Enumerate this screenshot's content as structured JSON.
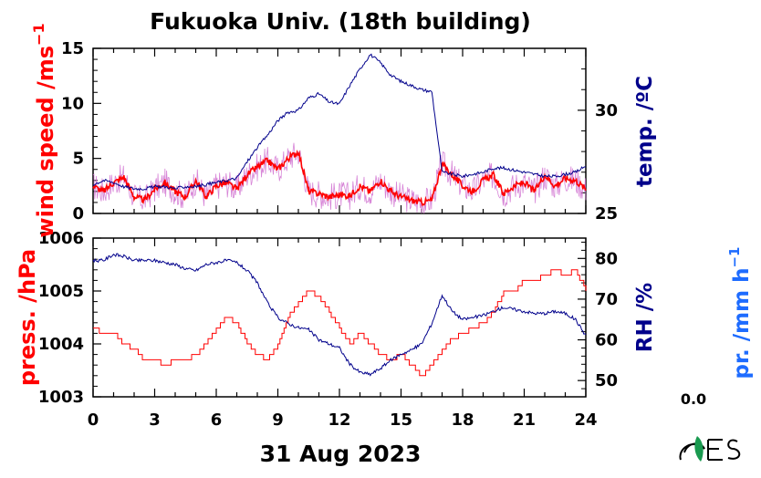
{
  "title": "Fukuoka Univ. (18th building)",
  "date_label": "31 Aug 2023",
  "precip_value": "0.0",
  "colors": {
    "wind": "#ff0000",
    "wind_raw": "#d070d0",
    "temp": "#00008b",
    "pressure": "#ff0000",
    "rh": "#00008b",
    "precip": "#1e6cff"
  },
  "chart_data": [
    {
      "type": "line",
      "panel": "upper",
      "xlabel": "",
      "xlim": [
        0,
        24
      ],
      "y_left": {
        "label_main": "wind speed /ms",
        "label_sup": "−1",
        "ylim": [
          0,
          15
        ],
        "ticks": [
          "0",
          "5",
          "10",
          "15"
        ]
      },
      "y_right": {
        "label": "temp. /ºC",
        "ylim": [
          25,
          33
        ],
        "ticks": [
          "25",
          "30"
        ]
      },
      "series": [
        {
          "axis": "left",
          "style": "smoothed",
          "x": [
            0,
            0.5,
            1,
            1.5,
            2,
            2.5,
            3,
            3.5,
            4,
            4.5,
            5,
            5.5,
            6,
            6.5,
            7,
            7.5,
            8,
            8.5,
            9,
            9.5,
            10,
            10.5,
            11,
            11.5,
            12,
            12.5,
            13,
            13.5,
            14,
            14.5,
            15,
            15.5,
            16,
            16.5,
            17,
            17.5,
            18,
            18.5,
            19,
            19.5,
            20,
            20.5,
            21,
            21.5,
            22,
            22.5,
            23,
            23.5,
            24
          ],
          "values": [
            2.5,
            2.0,
            2.8,
            3.3,
            1.5,
            1.2,
            2.2,
            2.8,
            2.0,
            1.5,
            3.0,
            1.5,
            2.5,
            2.8,
            2.2,
            3.5,
            4.2,
            4.8,
            4.0,
            5.0,
            5.6,
            2.0,
            1.8,
            1.5,
            1.7,
            1.6,
            2.5,
            2.0,
            3.0,
            2.0,
            1.5,
            1.2,
            1.0,
            1.2,
            4.5,
            3.5,
            2.5,
            2.0,
            3.0,
            3.5,
            1.8,
            2.5,
            2.8,
            2.0,
            3.5,
            2.5,
            3.2,
            3.0,
            2.2
          ]
        },
        {
          "axis": "right",
          "x": [
            0,
            0.5,
            1,
            1.5,
            2,
            2.5,
            3,
            3.5,
            4,
            4.5,
            5,
            5.5,
            6,
            6.5,
            7,
            7.5,
            8,
            8.5,
            9,
            9.5,
            10,
            10.5,
            11,
            11.5,
            12,
            12.5,
            13,
            13.5,
            14,
            14.5,
            15,
            15.5,
            16,
            16.5,
            17,
            17.5,
            18,
            18.5,
            19,
            19.5,
            20,
            20.5,
            21,
            21.5,
            22,
            22.5,
            23,
            23.5,
            24
          ],
          "values": [
            26.4,
            26.6,
            26.5,
            26.3,
            26.2,
            26.2,
            26.3,
            26.3,
            26.2,
            26.3,
            26.3,
            26.4,
            26.5,
            26.6,
            26.7,
            27.5,
            28.2,
            28.8,
            29.5,
            29.9,
            30.0,
            30.6,
            30.8,
            30.4,
            30.3,
            31.2,
            32.0,
            32.7,
            32.3,
            31.7,
            31.4,
            31.2,
            31.0,
            30.9,
            27.0,
            26.9,
            26.8,
            26.9,
            27.0,
            27.2,
            27.2,
            27.1,
            27.0,
            26.9,
            26.8,
            26.8,
            26.9,
            27.0,
            27.3
          ]
        }
      ]
    },
    {
      "type": "line",
      "panel": "lower",
      "xlabel": "31 Aug 2023",
      "xlim": [
        0,
        24
      ],
      "x_ticks": [
        "0",
        "3",
        "6",
        "9",
        "12",
        "15",
        "18",
        "21",
        "24"
      ],
      "y_left": {
        "label": "press. /hPa",
        "ylim": [
          1003,
          1006
        ],
        "ticks": [
          "1003",
          "1004",
          "1005",
          "1006"
        ]
      },
      "y_right": {
        "label": "RH /%",
        "ylim": [
          46,
          85
        ],
        "ticks": [
          "50",
          "60",
          "70",
          "80"
        ]
      },
      "y_right2": {
        "label_main": "pr. /mm h",
        "label_sup": "−1"
      },
      "series": [
        {
          "axis": "left",
          "x": [
            0,
            0.5,
            1,
            1.5,
            2,
            2.5,
            3,
            3.5,
            4,
            4.5,
            5,
            5.5,
            6,
            6.5,
            7,
            7.5,
            8,
            8.5,
            9,
            9.5,
            10,
            10.5,
            11,
            11.5,
            12,
            12.5,
            13,
            13.5,
            14,
            14.5,
            15,
            15.5,
            16,
            16.5,
            17,
            17.5,
            18,
            18.5,
            19,
            19.5,
            20,
            20.5,
            21,
            21.5,
            22,
            22.5,
            23,
            23.5,
            24
          ],
          "values": [
            1004.3,
            1004.2,
            1004.2,
            1004.0,
            1003.9,
            1003.7,
            1003.7,
            1003.6,
            1003.7,
            1003.7,
            1003.8,
            1004.0,
            1004.3,
            1004.5,
            1004.4,
            1004.0,
            1003.8,
            1003.7,
            1004.0,
            1004.5,
            1004.8,
            1005.0,
            1004.9,
            1004.6,
            1004.3,
            1004.0,
            1004.2,
            1004.0,
            1003.8,
            1003.7,
            1003.8,
            1003.6,
            1003.4,
            1003.6,
            1003.9,
            1004.1,
            1004.2,
            1004.3,
            1004.4,
            1004.6,
            1005.0,
            1005.0,
            1005.2,
            1005.2,
            1005.3,
            1005.4,
            1005.3,
            1005.4,
            1005.0
          ]
        },
        {
          "axis": "right",
          "x": [
            0,
            0.5,
            1,
            1.5,
            2,
            2.5,
            3,
            3.5,
            4,
            4.5,
            5,
            5.5,
            6,
            6.5,
            7,
            7.5,
            8,
            8.5,
            9,
            9.5,
            10,
            10.5,
            11,
            11.5,
            12,
            12.5,
            13,
            13.5,
            14,
            14.5,
            15,
            15.5,
            16,
            16.5,
            17,
            17.5,
            18,
            18.5,
            19,
            19.5,
            20,
            20.5,
            21,
            21.5,
            22,
            22.5,
            23,
            23.5,
            24
          ],
          "values": [
            79.5,
            79.5,
            81.0,
            80.5,
            79.5,
            79.5,
            79.5,
            79.0,
            78.5,
            77.5,
            77.0,
            78.5,
            79.0,
            79.5,
            79.0,
            77.0,
            74.0,
            69.0,
            65.5,
            64.0,
            63.0,
            62.5,
            60.0,
            59.0,
            58.0,
            54.0,
            52.0,
            51.5,
            53.0,
            55.0,
            56.5,
            57.5,
            59.0,
            64.0,
            71.0,
            67.0,
            65.0,
            65.5,
            66.0,
            67.0,
            68.0,
            67.5,
            67.0,
            66.5,
            66.5,
            67.0,
            66.5,
            65.0,
            61.0
          ]
        }
      ]
    }
  ]
}
